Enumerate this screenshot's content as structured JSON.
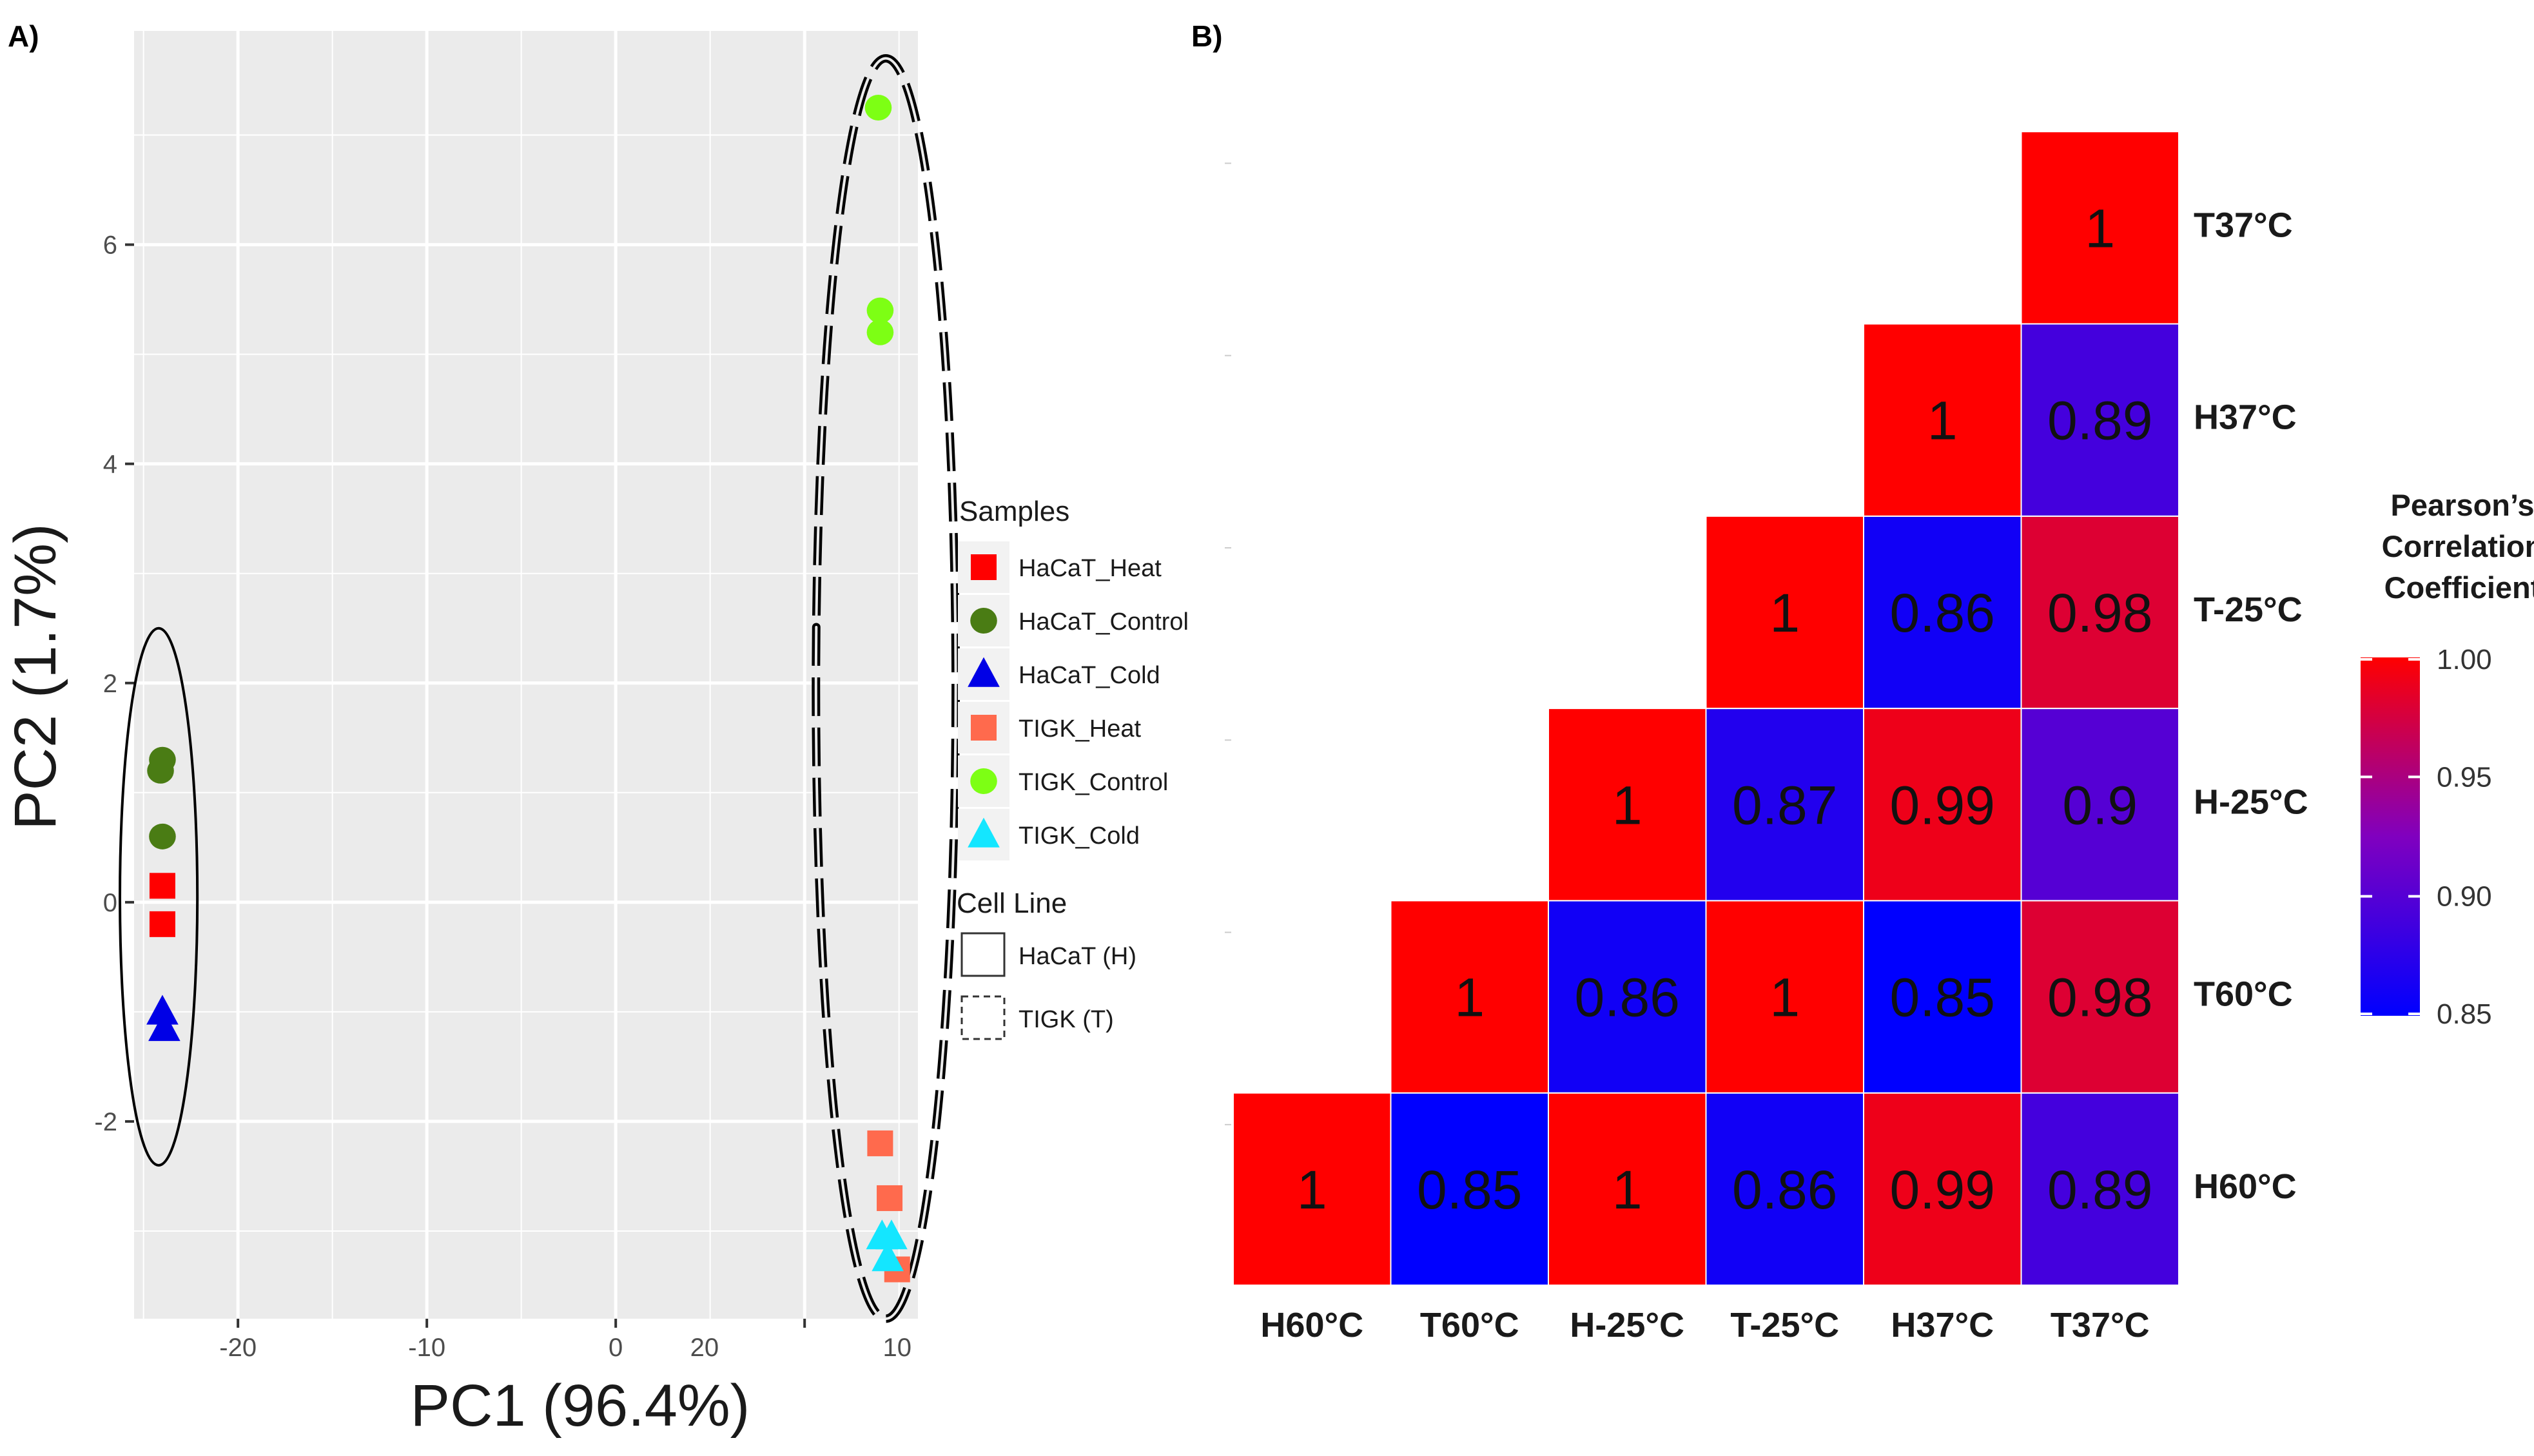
{
  "panels": {
    "a_label": "A)",
    "b_label": "B)"
  },
  "colors": {
    "panel_bg": "#ebebeb",
    "grid": "#ffffff",
    "HaCaT_Heat": "#ff0000",
    "HaCaT_Control": "#4a7c14",
    "HaCaT_Cold": "#0000e6",
    "TIGK_Heat": "#ff6a4d",
    "TIGK_Control": "#7dff14",
    "TIGK_Cold": "#14e6ff",
    "heat_low": "#0000ff",
    "heat_mid": "#8000bf",
    "heat_high": "#ff0000"
  },
  "chart_data": [
    {
      "type": "scatter",
      "title": "",
      "xlabel": "PC1 (96.4%)",
      "ylabel": "PC2 (1.7%)",
      "xlim": [
        -25.5,
        16
      ],
      "ylim": [
        -3.8,
        7.95
      ],
      "x_tick_labels": [
        "-20",
        "-10",
        "0",
        "20",
        "10"
      ],
      "y_ticks": [
        -2,
        0,
        2,
        4,
        6
      ],
      "y_tick_labels": [
        "-2",
        "0",
        "2",
        "4",
        "6"
      ],
      "legend_position": "right",
      "legend": {
        "samples_title": "Samples",
        "cell_line_title": "Cell Line",
        "samples": [
          {
            "name": "HaCaT_Heat",
            "shape": "square"
          },
          {
            "name": "HaCaT_Control",
            "shape": "circle"
          },
          {
            "name": "HaCaT_Cold",
            "shape": "triangle"
          },
          {
            "name": "TIGK_Heat",
            "shape": "square"
          },
          {
            "name": "TIGK_Control",
            "shape": "circle"
          },
          {
            "name": "TIGK_Cold",
            "shape": "triangle"
          }
        ],
        "cell_lines": [
          {
            "name": "HaCaT (H)",
            "line": "solid"
          },
          {
            "name": "TIGK (T)",
            "line": "dashed"
          }
        ]
      },
      "series": [
        {
          "name": "HaCaT_Heat",
          "shape": "square",
          "points": [
            [
              -24,
              0.15
            ],
            [
              -24,
              -0.2
            ]
          ]
        },
        {
          "name": "HaCaT_Control",
          "shape": "circle",
          "points": [
            [
              -24,
              1.3
            ],
            [
              -24.1,
              1.2
            ],
            [
              -24,
              0.6
            ]
          ]
        },
        {
          "name": "HaCaT_Cold",
          "shape": "triangle",
          "points": [
            [
              -24,
              -1.0
            ],
            [
              -23.9,
              -1.15
            ]
          ]
        },
        {
          "name": "TIGK_Heat",
          "shape": "square",
          "points": [
            [
              14.0,
              -2.2
            ],
            [
              14.5,
              -2.7
            ],
            [
              14.9,
              -3.35
            ]
          ]
        },
        {
          "name": "TIGK_Control",
          "shape": "circle",
          "points": [
            [
              13.9,
              7.25
            ],
            [
              14.0,
              5.4
            ],
            [
              14.0,
              5.2
            ]
          ]
        },
        {
          "name": "TIGK_Cold",
          "shape": "triangle",
          "points": [
            [
              14.1,
              -3.05
            ],
            [
              14.6,
              -3.05
            ],
            [
              14.4,
              -3.25
            ]
          ]
        }
      ],
      "ellipses": [
        {
          "group": "HaCaT (H)",
          "center": [
            -24.2,
            0.05
          ],
          "radius": [
            2.05,
            2.45
          ],
          "line": "solid"
        },
        {
          "group": "TIGK (T)",
          "center": [
            14.3,
            1.95
          ],
          "radius": [
            3.7,
            5.75
          ],
          "line": "dashed"
        }
      ]
    },
    {
      "type": "heatmap",
      "x_categories": [
        "H60°C",
        "T60°C",
        "H-25°C",
        "T-25°C",
        "H37°C",
        "T37°C"
      ],
      "y_categories": [
        "H60°C",
        "T60°C",
        "H-25°C",
        "T-25°C",
        "H37°C",
        "T37°C"
      ],
      "cells": [
        {
          "x": "H60°C",
          "y": "H60°C",
          "value": 1,
          "label": "1"
        },
        {
          "x": "T60°C",
          "y": "H60°C",
          "value": 0.85,
          "label": "0.85"
        },
        {
          "x": "H-25°C",
          "y": "H60°C",
          "value": 1,
          "label": "1"
        },
        {
          "x": "T-25°C",
          "y": "H60°C",
          "value": 0.86,
          "label": "0.86"
        },
        {
          "x": "H37°C",
          "y": "H60°C",
          "value": 0.99,
          "label": "0.99"
        },
        {
          "x": "T37°C",
          "y": "H60°C",
          "value": 0.89,
          "label": "0.89"
        },
        {
          "x": "T60°C",
          "y": "T60°C",
          "value": 1,
          "label": "1"
        },
        {
          "x": "H-25°C",
          "y": "T60°C",
          "value": 0.86,
          "label": "0.86"
        },
        {
          "x": "T-25°C",
          "y": "T60°C",
          "value": 1,
          "label": "1"
        },
        {
          "x": "H37°C",
          "y": "T60°C",
          "value": 0.85,
          "label": "0.85"
        },
        {
          "x": "T37°C",
          "y": "T60°C",
          "value": 0.98,
          "label": "0.98"
        },
        {
          "x": "H-25°C",
          "y": "H-25°C",
          "value": 1,
          "label": "1"
        },
        {
          "x": "T-25°C",
          "y": "H-25°C",
          "value": 0.87,
          "label": "0.87"
        },
        {
          "x": "H37°C",
          "y": "H-25°C",
          "value": 0.99,
          "label": "0.99"
        },
        {
          "x": "T37°C",
          "y": "H-25°C",
          "value": 0.9,
          "label": "0.9"
        },
        {
          "x": "T-25°C",
          "y": "T-25°C",
          "value": 1,
          "label": "1"
        },
        {
          "x": "H37°C",
          "y": "T-25°C",
          "value": 0.86,
          "label": "0.86"
        },
        {
          "x": "T37°C",
          "y": "T-25°C",
          "value": 0.98,
          "label": "0.98"
        },
        {
          "x": "H37°C",
          "y": "H37°C",
          "value": 1,
          "label": "1"
        },
        {
          "x": "T37°C",
          "y": "H37°C",
          "value": 0.89,
          "label": "0.89"
        },
        {
          "x": "T37°C",
          "y": "T37°C",
          "value": 1,
          "label": "1"
        }
      ],
      "legend_title": [
        "Pearson’s",
        "Correlation",
        "Coefficient"
      ],
      "color_scale": {
        "min": 0.85,
        "max": 1.0,
        "ticks": [
          1.0,
          0.95,
          0.9,
          0.85
        ],
        "tick_labels": [
          "1.00",
          "0.95",
          "0.90",
          "0.85"
        ]
      },
      "legend_position": "right"
    }
  ]
}
